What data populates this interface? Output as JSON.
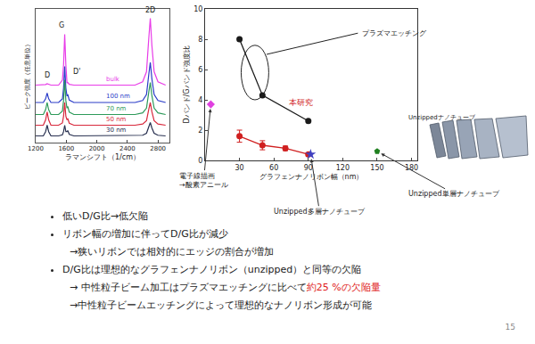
{
  "chart_data": [
    {
      "type": "line",
      "x_label": "ラマンシフト（1/cm）",
      "y_label": "ピーク強度（任意単位）",
      "x": [
        1200,
        1300,
        1330,
        1350,
        1370,
        1400,
        1500,
        1550,
        1565,
        1580,
        1595,
        1610,
        1620,
        1640,
        1700,
        1900,
        2100,
        2300,
        2500,
        2600,
        2650,
        2680,
        2700,
        2720,
        2750,
        2800,
        2900
      ],
      "series": [
        {
          "name": "bulk",
          "color": "#e83ce8",
          "values": [
            4.3,
            4.3,
            4.34,
            4.4,
            4.34,
            4.3,
            4.3,
            4.68,
            5.82,
            8.1,
            5.82,
            4.46,
            4.5,
            4.36,
            4.3,
            4.3,
            4.3,
            4.3,
            4.3,
            4.55,
            5.3,
            7.8,
            9.3,
            7.3,
            5.3,
            4.55,
            4.3
          ]
        },
        {
          "name": "100 nm",
          "color": "#2a3cc8",
          "values": [
            3.0,
            3.0,
            3.28,
            3.7,
            3.28,
            3.0,
            3.0,
            3.27,
            4.08,
            5.7,
            4.08,
            3.48,
            3.6,
            3.18,
            3.0,
            3.0,
            3.0,
            3.0,
            3.0,
            3.15,
            3.6,
            5.1,
            6.0,
            4.8,
            3.6,
            3.15,
            3.0
          ]
        },
        {
          "name": "70 nm",
          "color": "#2e9a5a",
          "values": [
            2.1,
            2.1,
            2.46,
            3.0,
            2.46,
            2.1,
            2.1,
            2.36,
            3.14,
            4.7,
            3.14,
            2.58,
            2.7,
            2.28,
            2.1,
            2.1,
            2.1,
            2.1,
            2.1,
            2.22,
            2.58,
            3.78,
            4.5,
            3.54,
            2.58,
            2.22,
            2.1
          ]
        },
        {
          "name": "50 nm",
          "color": "#d8283c",
          "values": [
            1.3,
            1.3,
            1.7,
            2.3,
            1.7,
            1.3,
            1.3,
            1.47,
            1.98,
            3.0,
            1.98,
            1.7,
            1.8,
            1.45,
            1.3,
            1.3,
            1.3,
            1.3,
            1.3,
            1.39,
            1.64,
            2.49,
            3.0,
            2.32,
            1.64,
            1.39,
            1.3
          ]
        },
        {
          "name": "30 nm",
          "color": "#283050",
          "values": [
            0.5,
            0.5,
            0.82,
            1.3,
            0.82,
            0.5,
            0.5,
            0.58,
            0.82,
            1.3,
            0.82,
            0.82,
            0.9,
            0.62,
            0.5,
            0.5,
            0.5,
            0.5,
            0.5,
            0.55,
            0.7,
            1.2,
            1.5,
            1.1,
            0.7,
            0.55,
            0.5
          ]
        }
      ],
      "xlim": [
        1200,
        2950
      ],
      "xticks": [
        1200,
        1600,
        2000,
        2400,
        2800
      ],
      "ylim": [
        0,
        10
      ],
      "tick_labels": "x",
      "grid": false,
      "annotations": [
        {
          "text": "D",
          "x": 1350
        },
        {
          "text": "G",
          "x": 1580
        },
        {
          "text": "D'",
          "x": 1620
        },
        {
          "text": "2D",
          "x": 2700
        }
      ]
    },
    {
      "type": "scatter",
      "x_label": "グラフェンナノリボン幅（nm）",
      "y_label": "Dバンド/Gバンド強度比",
      "series": [
        {
          "name": "プラズマエッチング",
          "color": "#1a1a1a",
          "marker": "circle",
          "line_style": "solid",
          "x": [
            30,
            50,
            90
          ],
          "values": [
            8.0,
            4.3,
            2.6
          ]
        },
        {
          "name": "本研究",
          "color": "#d02020",
          "marker": "circle",
          "line_style": "solid",
          "x": [
            30,
            50,
            70,
            90
          ],
          "values": [
            1.6,
            1.0,
            0.8,
            0.4
          ],
          "error": [
            0.4,
            0.3,
            0.15,
            0.1
          ]
        },
        {
          "name": "電子線描画\n→酸素アニール",
          "color": "#e040e0",
          "marker": "diamond",
          "line_style": "none",
          "x": [
            5
          ],
          "values": [
            3.7
          ]
        },
        {
          "name": "Unzipped多層ナノチューブ",
          "color": "#4040c0",
          "marker": "star",
          "line_style": "none",
          "x": [
            92
          ],
          "values": [
            0.4
          ]
        },
        {
          "name": "Unzipped単層ナノチューブ",
          "color": "#208020",
          "marker": "pentagon",
          "line_style": "none",
          "x": [
            150
          ],
          "values": [
            0.6
          ]
        }
      ],
      "xlim": [
        0,
        185
      ],
      "xticks": [
        30,
        60,
        90,
        120,
        150,
        180
      ],
      "ylim": [
        0,
        10
      ],
      "yticks": [
        0,
        2,
        4,
        6,
        8,
        10
      ],
      "grid": false,
      "annotations": [
        {
          "text": "Unzippedナノチューブ"
        }
      ]
    }
  ],
  "bullets": [
    {
      "text": "低いD/G比→低欠陥"
    },
    {
      "text": "リボン幅の増加に伴ってD/G比が減少",
      "sub": [
        [
          {
            "text": "→狭いリボンでは相対的にエッジの割合が増加"
          }
        ]
      ]
    },
    {
      "text": "D/G比は理想的なグラフェンナノリボン（unzipped）と同等の欠陥",
      "sub": [
        [
          {
            "text": "→ 中性粒子ビーム加工はプラズマエッチングに比べて"
          },
          {
            "text": "約25 %の欠陥量",
            "color": "#e02020"
          }
        ],
        [
          {
            "text": "→中性粒子ビームエッチングによって理想的なナノリボン形成が可能"
          }
        ]
      ]
    }
  ],
  "page_number": "15"
}
